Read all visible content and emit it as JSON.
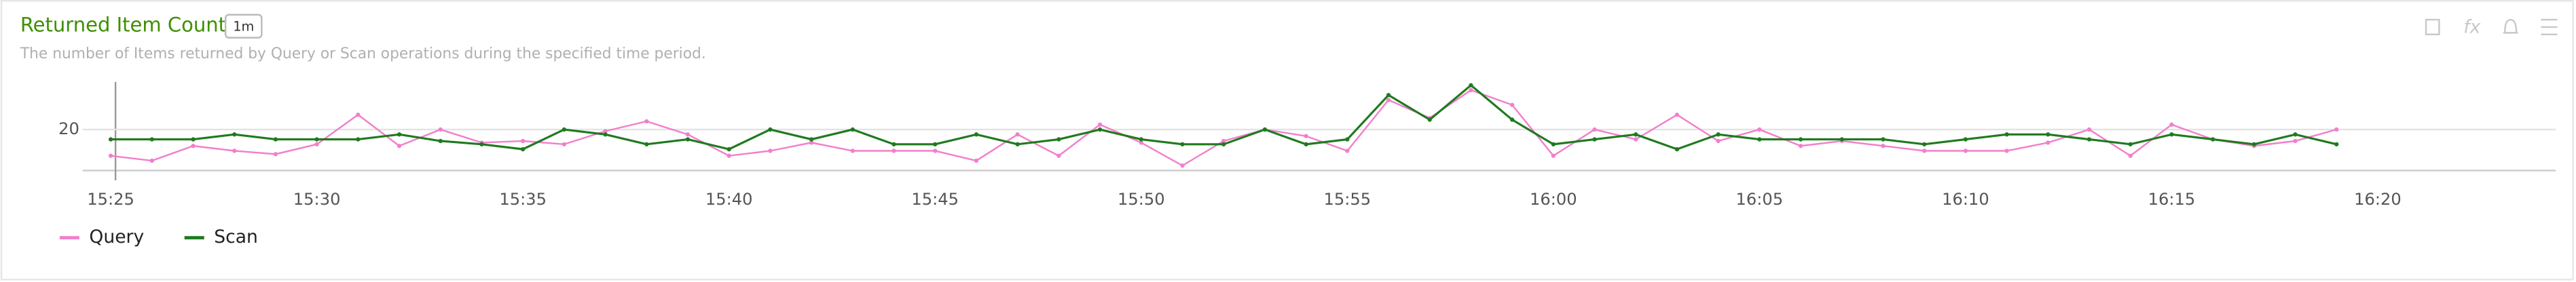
{
  "chart_data": {
    "type": "line",
    "title": "Returned Item Count",
    "badge": "1m",
    "subtitle": "The number of Items returned by Query or Scan operations during the specified time period.",
    "x": [
      "15:25",
      "15:26",
      "15:27",
      "15:28",
      "15:29",
      "15:30",
      "15:31",
      "15:32",
      "15:33",
      "15:34",
      "15:35",
      "15:36",
      "15:37",
      "15:38",
      "15:39",
      "15:40",
      "15:41",
      "15:42",
      "15:43",
      "15:44",
      "15:45",
      "15:46",
      "15:47",
      "15:48",
      "15:49",
      "15:50",
      "15:51",
      "15:52",
      "15:53",
      "15:54",
      "15:55",
      "15:56",
      "15:57",
      "15:58",
      "15:59",
      "16:00",
      "16:01",
      "16:02",
      "16:03",
      "16:04",
      "16:05",
      "16:06",
      "16:07",
      "16:08",
      "16:09",
      "16:10",
      "16:11",
      "16:12",
      "16:13",
      "16:14",
      "16:15",
      "16:16",
      "16:17",
      "16:18",
      "16:19"
    ],
    "xlim": [
      "15:24",
      "16:24"
    ],
    "xticks": [
      "15:25",
      "15:30",
      "15:35",
      "15:40",
      "15:45",
      "15:50",
      "15:55",
      "16:00",
      "16:05",
      "16:10",
      "16:15",
      "16:20"
    ],
    "ylim": [
      15,
      26
    ],
    "yticks": [
      20
    ],
    "grid": true,
    "series": [
      {
        "name": "Query",
        "color": "#f27fcb",
        "values": [
          16.8,
          16.2,
          18,
          17.4,
          17,
          18.2,
          21.8,
          18,
          20,
          18.4,
          18.6,
          18.2,
          19.8,
          21,
          19.4,
          16.8,
          17.4,
          18.4,
          17.4,
          17.4,
          17.4,
          16.2,
          19.4,
          16.8,
          20.6,
          18.4,
          15.6,
          18.6,
          20,
          19.2,
          17.4,
          23.6,
          21.4,
          24.8,
          23,
          16.8,
          20,
          18.8,
          21.8,
          18.6,
          20,
          18,
          18.6,
          18,
          17.4,
          17.4,
          17.4,
          18.4,
          20,
          16.8,
          20.6,
          18.8,
          18,
          18.6,
          20
        ]
      },
      {
        "name": "Scan",
        "color": "#1f7a1f",
        "values": [
          18.8,
          18.8,
          18.8,
          19.4,
          18.8,
          18.8,
          18.8,
          19.4,
          18.6,
          18.2,
          17.6,
          20,
          19.4,
          18.2,
          18.8,
          17.6,
          20,
          18.8,
          20,
          18.2,
          18.2,
          19.4,
          18.2,
          18.8,
          20,
          18.8,
          18.2,
          18.2,
          20,
          18.2,
          18.8,
          24.2,
          21.2,
          25.4,
          21.2,
          18.2,
          18.8,
          19.4,
          17.6,
          19.4,
          18.8,
          18.8,
          18.8,
          18.8,
          18.2,
          18.8,
          19.4,
          19.4,
          18.8,
          18.2,
          19.4,
          18.8,
          18.2,
          19.4,
          18.2
        ]
      }
    ]
  }
}
